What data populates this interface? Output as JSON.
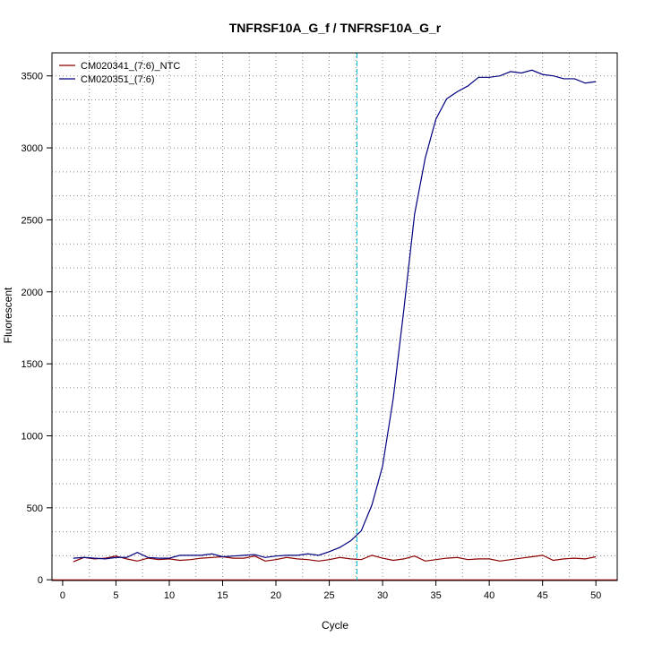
{
  "chart_data": {
    "type": "line",
    "title": "TNFRSF10A_G_f / TNFRSF10A_G_r",
    "xlabel": "Cycle",
    "ylabel": "Fluorescent",
    "xlim": [
      -1,
      52
    ],
    "ylim": [
      -5,
      3660
    ],
    "x_ticks": [
      0,
      5,
      10,
      15,
      20,
      25,
      30,
      35,
      40,
      45,
      50
    ],
    "y_ticks": [
      0,
      500,
      1000,
      1500,
      2000,
      2500,
      3000,
      3500
    ],
    "grid": true,
    "legend_position": "top-left",
    "threshold_line": {
      "x": 27.6,
      "color": "#00c8d8"
    },
    "baseline": {
      "y": 0,
      "color": "#c00000"
    },
    "x": [
      1,
      2,
      3,
      4,
      5,
      6,
      7,
      8,
      9,
      10,
      11,
      12,
      13,
      14,
      15,
      16,
      17,
      18,
      19,
      20,
      21,
      22,
      23,
      24,
      25,
      26,
      27,
      28,
      29,
      30,
      31,
      32,
      33,
      34,
      35,
      36,
      37,
      38,
      39,
      40,
      41,
      42,
      43,
      44,
      45,
      46,
      47,
      48,
      49,
      50
    ],
    "series": [
      {
        "name": "CM020341_(7:6)_NTC",
        "color": "#8b0000",
        "values": [
          125,
          155,
          145,
          150,
          165,
          145,
          130,
          150,
          140,
          145,
          135,
          140,
          150,
          155,
          160,
          150,
          150,
          165,
          130,
          140,
          155,
          145,
          140,
          130,
          140,
          155,
          145,
          140,
          170,
          150,
          135,
          145,
          165,
          130,
          140,
          150,
          155,
          140,
          145,
          145,
          130,
          140,
          150,
          160,
          170,
          135,
          145,
          150,
          145,
          160
        ]
      },
      {
        "name": "CM020351_(7:6)",
        "color": "#00007f",
        "values": [
          150,
          155,
          150,
          145,
          155,
          155,
          190,
          155,
          150,
          150,
          170,
          170,
          170,
          180,
          160,
          165,
          170,
          175,
          155,
          165,
          170,
          170,
          180,
          170,
          195,
          225,
          270,
          340,
          520,
          790,
          1260,
          1880,
          2540,
          2930,
          3200,
          3340,
          3390,
          3430,
          3490,
          3490,
          3500,
          3530,
          3520,
          3540,
          3510,
          3500,
          3480,
          3480,
          3450,
          3460
        ]
      }
    ]
  }
}
